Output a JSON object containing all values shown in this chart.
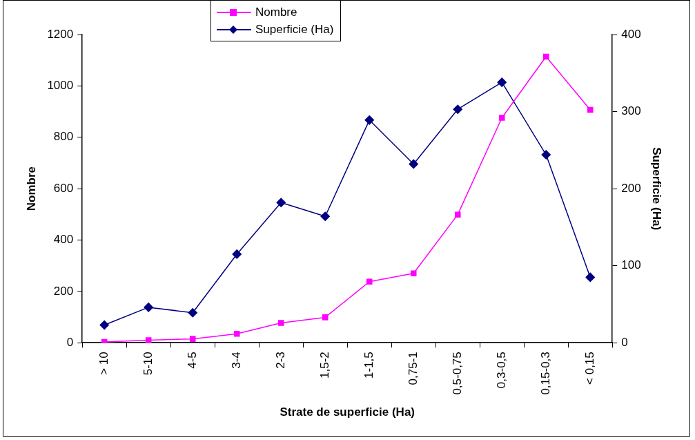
{
  "chart_data": {
    "type": "line",
    "xlabel": "Strate de superficie (Ha)",
    "ylabel": "Nombre",
    "y2label": "Superficie (Ha)",
    "categories": [
      "> 10",
      "5-10",
      "4-5",
      "3-4",
      "2-3",
      "1,5-2",
      "1-1,5",
      "0,75-1",
      "0,5-0,75",
      "0,3-0,5",
      "0,15-0,3",
      "< 0,15"
    ],
    "series": [
      {
        "name": "Nombre",
        "color": "#ff00ff",
        "marker": "square",
        "values": [
          3,
          10,
          15,
          35,
          77,
          99,
          238,
          270,
          499,
          876,
          1114,
          907
        ]
      },
      {
        "name": "Superficie (Ha)",
        "color": "#000080",
        "marker": "diamond",
        "axis": "y2",
        "values": [
          23,
          46,
          39,
          115,
          182,
          164,
          289,
          232,
          303,
          338,
          244,
          85
        ]
      }
    ],
    "ylim": [
      0,
      1200
    ],
    "yticks": [
      0,
      200,
      400,
      600,
      800,
      1000,
      1200
    ],
    "y2lim": [
      0,
      400
    ],
    "y2ticks": [
      0,
      100,
      200,
      300,
      400
    ],
    "grid": false,
    "legend": "top"
  }
}
